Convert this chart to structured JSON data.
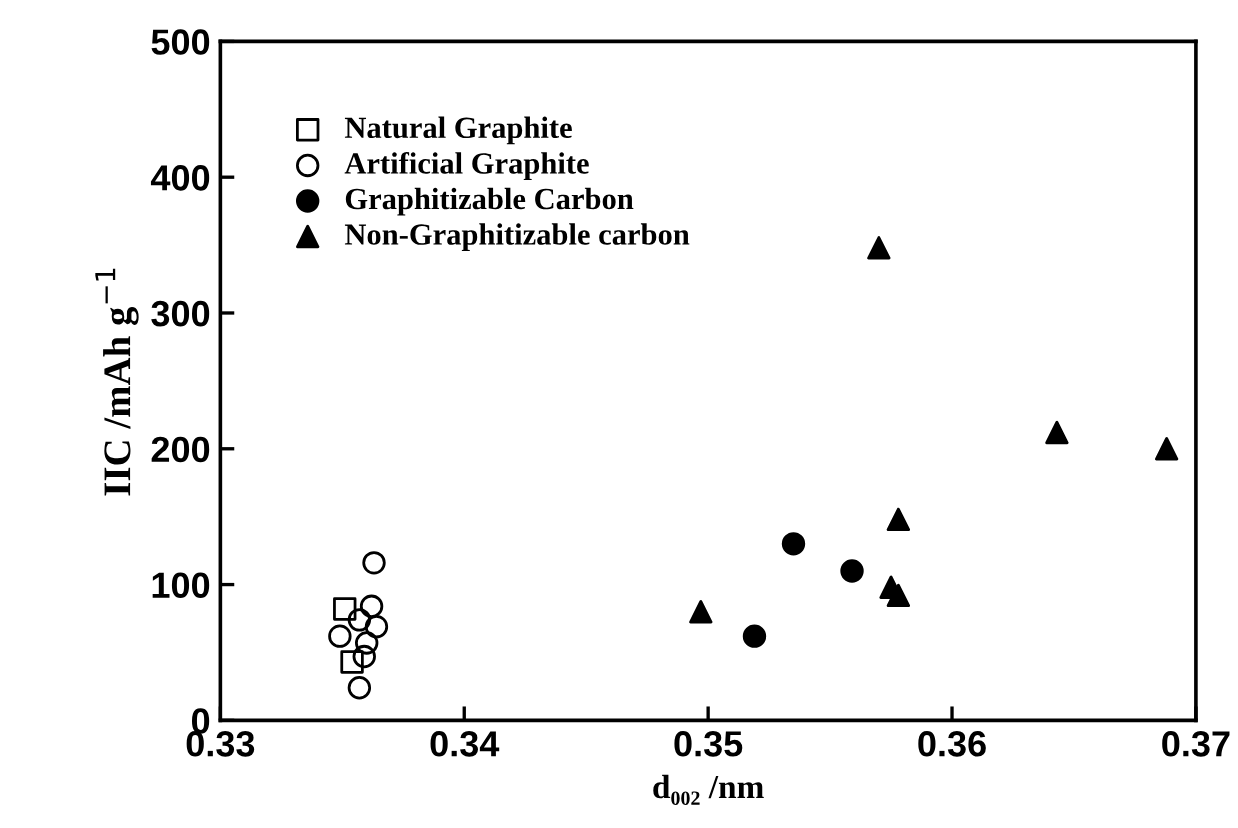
{
  "chart_data": {
    "type": "scatter",
    "xlabel": "d₀₀₂ /nm",
    "ylabel": "IIC /mAh g$^{−1}$",
    "xlim": [
      0.33,
      0.37
    ],
    "xticks": [
      {
        "value": 0.33,
        "label": "0.33"
      },
      {
        "value": 0.34,
        "label": "0.34"
      },
      {
        "value": 0.35,
        "label": "0.35"
      },
      {
        "value": 0.36,
        "label": "0.36"
      },
      {
        "value": 0.37,
        "label": "0.37"
      }
    ],
    "ylim": [
      0,
      500
    ],
    "yticks": [
      0,
      100,
      200,
      300,
      400,
      500
    ],
    "grid": false,
    "legend": "top left",
    "series": [
      {
        "name": "Natural Graphite",
        "color": "#000000",
        "marker": "square",
        "x": [
          0.3351,
          0.3354
        ],
        "values": [
          82,
          43
        ]
      },
      {
        "name": "Artificial Graphite",
        "color": "#000000",
        "marker": "circle",
        "x": [
          0.3363,
          0.3362,
          0.3357,
          0.3364,
          0.3349,
          0.336,
          0.3359,
          0.3357
        ],
        "values": [
          116,
          84,
          74,
          69,
          62,
          57,
          47,
          24
        ]
      },
      {
        "name": "Graphitizable Carbon",
        "color": "#000000",
        "marker": "circle",
        "x": [
          0.3535,
          0.3559,
          0.3519
        ],
        "values": [
          130,
          110,
          62
        ]
      },
      {
        "name": "Non-Graphitizable carbon",
        "color": "#000000",
        "marker": "triangle",
        "x": [
          0.3497,
          0.357,
          0.3578,
          0.3575,
          0.3578,
          0.3643,
          0.3688
        ],
        "values": [
          80,
          348,
          148,
          98,
          92,
          212,
          200
        ]
      }
    ]
  }
}
